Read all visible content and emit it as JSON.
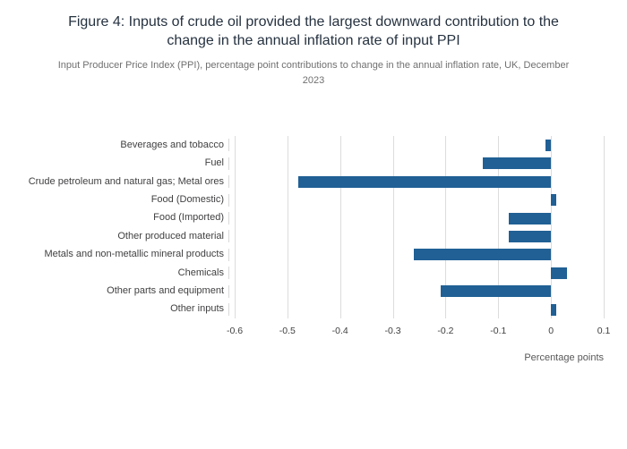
{
  "header": {
    "title": "Figure 4: Inputs of crude oil provided the largest downward contribution to the change in the annual inflation rate of input PPI",
    "subtitle": "Input Producer Price Index (PPI), percentage point contributions to change in the annual inflation rate, UK, December 2023"
  },
  "chart_data": {
    "type": "bar",
    "orientation": "horizontal",
    "title": "Figure 4: Inputs of crude oil provided the largest downward contribution to the change in the annual inflation rate of input PPI",
    "subtitle": "Input Producer Price Index (PPI), percentage point contributions to change in the annual inflation rate, UK, December 2023",
    "categories": [
      "Beverages and tobacco",
      "Fuel",
      "Crude petroleum and natural gas; Metal ores",
      "Food (Domestic)",
      "Food (Imported)",
      "Other produced material",
      "Metals and non-metallic mineral products",
      "Chemicals",
      "Other parts and equipment",
      "Other inputs"
    ],
    "values": [
      -0.01,
      -0.13,
      -0.48,
      0.01,
      -0.08,
      -0.08,
      -0.26,
      0.03,
      -0.21,
      0.01
    ],
    "xlabel": "Percentage points",
    "ylabel": "",
    "xlim": [
      -0.6,
      0.1
    ],
    "xtick_values": [
      -0.6,
      -0.5,
      -0.4,
      -0.3,
      -0.2,
      -0.1,
      0,
      0.1
    ],
    "xtick_labels": [
      "-0.6",
      "-0.5",
      "-0.4",
      "-0.3",
      "-0.2",
      "-0.1",
      "0",
      "0.1"
    ],
    "grid": true,
    "legend": false,
    "bar_color": "#206095",
    "grid_color": "#dcdcdc"
  }
}
